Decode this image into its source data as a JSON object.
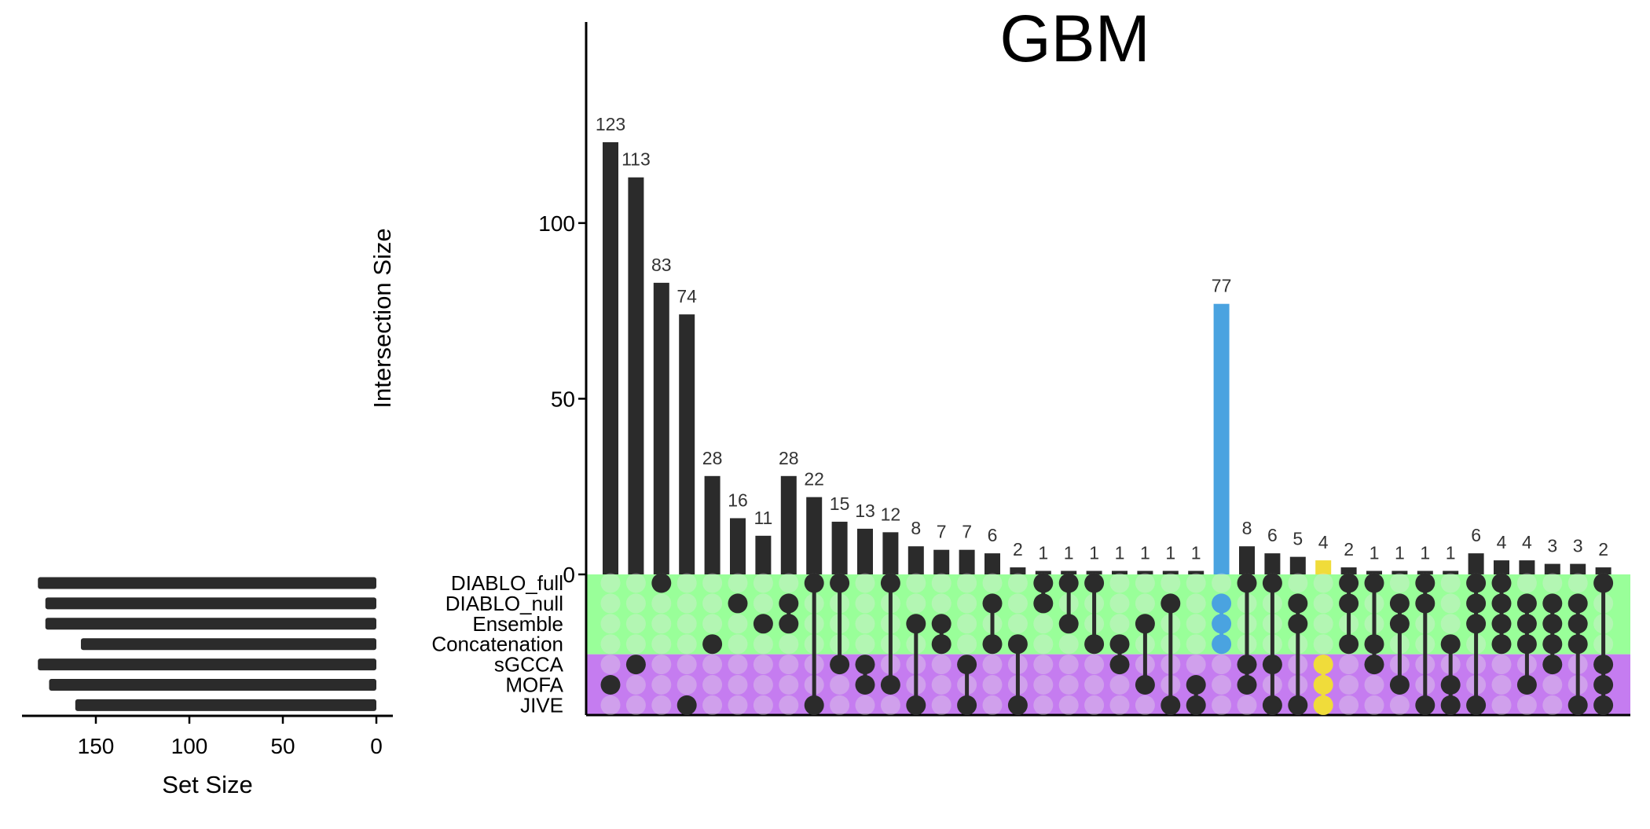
{
  "chart_data": {
    "type": "upset",
    "title": "GBM",
    "intersection_axis": {
      "label": "Intersection Size",
      "ticks": [
        0,
        50,
        100
      ],
      "range": [
        0,
        140
      ]
    },
    "set_size_axis": {
      "label": "Set Size",
      "ticks": [
        150,
        100,
        50,
        0
      ],
      "range": [
        0,
        190
      ],
      "direction": "reversed"
    },
    "sets": [
      "DIABLO_full",
      "DIABLO_null",
      "Ensemble",
      "Concatenation",
      "sGCCA",
      "MOFA",
      "JIVE"
    ],
    "set_sizes": [
      181,
      177,
      177,
      158,
      181,
      175,
      161
    ],
    "set_groups": [
      {
        "rows": [
          0,
          3
        ],
        "color": "#99ff99"
      },
      {
        "rows": [
          4,
          6
        ],
        "color": "#c57cf0"
      }
    ],
    "intersections": [
      {
        "value": 123,
        "members": [
          5
        ]
      },
      {
        "value": 113,
        "members": [
          4
        ]
      },
      {
        "value": 83,
        "members": [
          0
        ]
      },
      {
        "value": 74,
        "members": [
          6
        ]
      },
      {
        "value": 28,
        "members": [
          3
        ]
      },
      {
        "value": 16,
        "members": [
          1
        ]
      },
      {
        "value": 11,
        "members": [
          2
        ]
      },
      {
        "value": 28,
        "members": [
          1,
          2
        ]
      },
      {
        "value": 22,
        "members": [
          0,
          6
        ]
      },
      {
        "value": 15,
        "members": [
          0,
          4
        ]
      },
      {
        "value": 13,
        "members": [
          4,
          5
        ]
      },
      {
        "value": 12,
        "members": [
          0,
          5
        ]
      },
      {
        "value": 8,
        "members": [
          2,
          6
        ]
      },
      {
        "value": 7,
        "members": [
          2,
          3
        ]
      },
      {
        "value": 7,
        "members": [
          4,
          6
        ]
      },
      {
        "value": 6,
        "members": [
          1,
          3
        ]
      },
      {
        "value": 2,
        "members": [
          3,
          6
        ]
      },
      {
        "value": 1,
        "members": [
          0,
          1
        ]
      },
      {
        "value": 1,
        "members": [
          0,
          2
        ]
      },
      {
        "value": 1,
        "members": [
          0,
          3
        ]
      },
      {
        "value": 1,
        "members": [
          3,
          4
        ]
      },
      {
        "value": 1,
        "members": [
          2,
          5
        ]
      },
      {
        "value": 1,
        "members": [
          1,
          6
        ]
      },
      {
        "value": 1,
        "members": [
          5,
          6
        ]
      },
      {
        "value": 77,
        "members": [
          1,
          2,
          3
        ],
        "highlight": "#4aa3e0"
      },
      {
        "value": 8,
        "members": [
          0,
          4,
          5
        ]
      },
      {
        "value": 6,
        "members": [
          0,
          4,
          6
        ]
      },
      {
        "value": 5,
        "members": [
          1,
          2,
          6
        ]
      },
      {
        "value": 4,
        "members": [
          4,
          5,
          6
        ],
        "highlight": "#f0dc3a"
      },
      {
        "value": 2,
        "members": [
          0,
          1,
          3
        ]
      },
      {
        "value": 1,
        "members": [
          0,
          3,
          4
        ]
      },
      {
        "value": 1,
        "members": [
          1,
          2,
          5
        ]
      },
      {
        "value": 1,
        "members": [
          0,
          1,
          6
        ]
      },
      {
        "value": 1,
        "members": [
          3,
          5,
          6
        ]
      },
      {
        "value": 6,
        "members": [
          0,
          1,
          2,
          6
        ]
      },
      {
        "value": 4,
        "members": [
          0,
          1,
          2,
          3
        ]
      },
      {
        "value": 4,
        "members": [
          1,
          2,
          3,
          5
        ]
      },
      {
        "value": 3,
        "members": [
          1,
          2,
          3,
          4
        ]
      },
      {
        "value": 3,
        "members": [
          1,
          2,
          3,
          6
        ]
      },
      {
        "value": 2,
        "members": [
          0,
          4,
          5,
          6
        ]
      }
    ],
    "bar_color": "#2b2b2b",
    "inactive_dot_color": "#e6e6e6",
    "grid": false
  }
}
